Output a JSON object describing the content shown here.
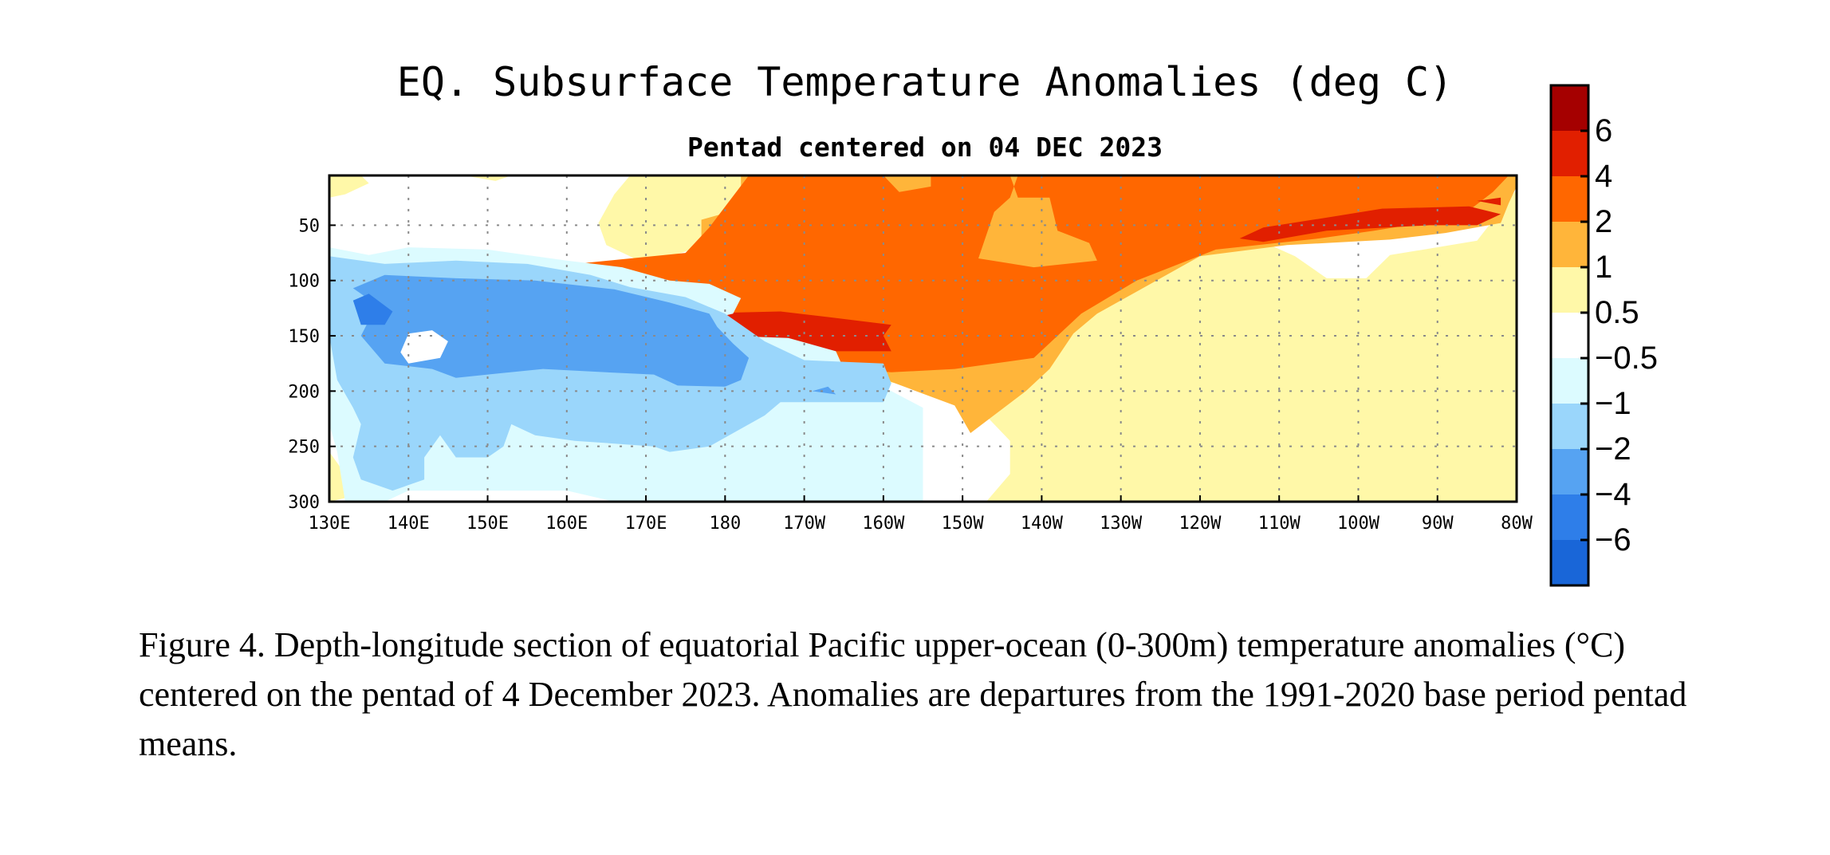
{
  "chart_data": {
    "type": "heatmap",
    "title": "EQ. Subsurface Temperature Anomalies (deg C)",
    "subtitle": "Pentad centered on 04 DEC 2023",
    "xlabel": "",
    "ylabel": "",
    "x_ticks": [
      "130E",
      "140E",
      "150E",
      "160E",
      "170E",
      "180",
      "170W",
      "160W",
      "150W",
      "140W",
      "130W",
      "120W",
      "110W",
      "100W",
      "90W",
      "80W"
    ],
    "y_ticks": [
      "50",
      "100",
      "150",
      "200",
      "250",
      "300"
    ],
    "y_tick_values": [
      50,
      100,
      150,
      200,
      250,
      300
    ],
    "ylim": [
      300,
      5
    ],
    "grid": true,
    "colorbar": {
      "placement": "right",
      "tick_labels": [
        "6",
        "4",
        "2",
        "1",
        "0.5",
        "−0.5",
        "−1",
        "−2",
        "−4",
        "−6"
      ],
      "colors": [
        "#a50000",
        "#e11f00",
        "#ff6700",
        "#ffb53a",
        "#fff8a8",
        "#ffffff",
        "#dcfbff",
        "#9ad6fb",
        "#56a3f2",
        "#2e7ee9",
        "#1966d8"
      ]
    },
    "colors": {
      "level_neg4": "#2e7ee9",
      "level_neg2": "#56a3f2",
      "level_neg1": "#9ad6fb",
      "level_neg05": "#dcfbff",
      "level_zero": "#ffffff",
      "level_05": "#fff8a8",
      "level_1": "#ffb53a",
      "level_2": "#ff6700",
      "level_4": "#e11f00"
    },
    "regions": [
      {
        "level": "level_05",
        "points": [
          [
            130,
            5
          ],
          [
            134,
            5
          ],
          [
            135,
            12
          ],
          [
            132,
            22
          ],
          [
            130,
            25
          ]
        ]
      },
      {
        "level": "level_05",
        "points": [
          [
            130,
            255
          ],
          [
            132,
            275
          ],
          [
            133,
            295
          ],
          [
            130,
            300
          ]
        ]
      },
      {
        "level": "level_05",
        "points": [
          [
            147,
            5
          ],
          [
            153,
            5
          ],
          [
            151,
            10
          ]
        ]
      },
      {
        "level": "level_05",
        "points": [
          [
            168,
            5
          ],
          [
            200,
            5
          ],
          [
            199,
            20
          ],
          [
            170,
            85
          ],
          [
            165,
            68
          ],
          [
            164,
            48
          ],
          [
            166,
            22
          ]
        ]
      },
      {
        "level": "level_05",
        "points": [
          [
            210,
            68
          ],
          [
            228,
            52
          ],
          [
            234,
            35
          ],
          [
            244,
            42
          ],
          [
            247,
            62
          ],
          [
            252,
            78
          ],
          [
            256,
            98
          ],
          [
            261,
            98
          ],
          [
            264,
            77
          ],
          [
            275,
            64
          ],
          [
            280,
            18
          ],
          [
            280,
            300
          ],
          [
            196,
            300
          ],
          [
            213,
            300
          ],
          [
            216,
            275
          ],
          [
            216,
            245
          ],
          [
            212,
            215
          ],
          [
            208,
            200
          ],
          [
            199,
            190
          ],
          [
            196,
            180
          ]
        ]
      },
      {
        "level": "level_1",
        "points": [
          [
            171,
            92
          ],
          [
            175,
            75
          ],
          [
            177,
            62
          ],
          [
            177,
            45
          ],
          [
            182,
            35
          ],
          [
            182,
            5
          ],
          [
            280,
            5
          ],
          [
            280,
            15
          ],
          [
            279,
            30
          ],
          [
            278,
            48
          ],
          [
            271,
            57
          ],
          [
            264,
            63
          ],
          [
            251,
            68
          ],
          [
            240,
            78
          ],
          [
            232,
            110
          ],
          [
            227,
            130
          ],
          [
            224,
            148
          ],
          [
            221,
            180
          ],
          [
            218,
            200
          ],
          [
            211,
            238
          ],
          [
            209,
            213
          ],
          [
            200,
            189
          ],
          [
            194,
            177
          ],
          [
            187,
            166
          ],
          [
            184,
            160
          ]
        ]
      },
      {
        "level": "level_2",
        "points": [
          [
            175,
            75
          ],
          [
            178,
            52
          ],
          [
            183,
            5
          ],
          [
            279,
            5
          ],
          [
            277,
            20
          ],
          [
            273,
            42
          ],
          [
            262,
            55
          ],
          [
            255,
            62
          ],
          [
            242,
            72
          ],
          [
            232,
            100
          ],
          [
            225,
            130
          ],
          [
            219,
            170
          ],
          [
            209,
            180
          ],
          [
            201,
            183
          ],
          [
            196,
            180
          ],
          [
            193,
            178
          ],
          [
            192,
            168
          ],
          [
            186,
            158
          ],
          [
            176,
            148
          ],
          [
            166,
            140
          ],
          [
            152,
            134
          ],
          [
            150,
            120
          ],
          [
            145,
            104
          ],
          [
            140,
            100
          ]
        ]
      },
      {
        "level": "level_1",
        "points": [
          [
            200,
            5
          ],
          [
            206,
            5
          ],
          [
            206,
            15
          ],
          [
            202,
            20
          ]
        ]
      },
      {
        "level": "level_1",
        "points": [
          [
            212,
            5
          ],
          [
            217,
            5
          ],
          [
            216,
            25
          ],
          [
            214,
            38
          ],
          [
            212,
            80
          ],
          [
            219,
            88
          ],
          [
            227,
            82
          ],
          [
            226,
            66
          ],
          [
            222,
            55
          ],
          [
            221,
            25
          ],
          [
            217,
            25
          ],
          [
            216,
            5
          ]
        ]
      },
      {
        "level": "level_4",
        "points": [
          [
            245,
            62
          ],
          [
            248,
            52
          ],
          [
            257,
            42
          ],
          [
            263,
            35
          ],
          [
            274,
            33
          ],
          [
            278,
            40
          ],
          [
            275,
            50
          ],
          [
            269,
            50
          ],
          [
            256,
            55
          ],
          [
            248,
            65
          ]
        ]
      },
      {
        "level": "level_4",
        "points": [
          [
            275,
            28
          ],
          [
            278,
            25
          ],
          [
            278,
            32
          ]
        ]
      },
      {
        "level": "level_4",
        "points": [
          [
            165,
            140
          ],
          [
            175,
            130
          ],
          [
            187,
            128
          ],
          [
            193,
            133
          ],
          [
            201,
            140
          ],
          [
            200,
            150
          ],
          [
            201,
            164
          ],
          [
            190,
            164
          ],
          [
            183,
            158
          ],
          [
            168,
            145
          ]
        ]
      },
      {
        "level": "level_neg05",
        "points": [
          [
            130,
            70
          ],
          [
            135,
            77
          ],
          [
            140,
            70
          ],
          [
            150,
            72
          ],
          [
            160,
            82
          ],
          [
            167,
            88
          ],
          [
            173,
            100
          ],
          [
            178,
            103
          ],
          [
            182,
            116
          ],
          [
            181,
            130
          ],
          [
            175,
            140
          ],
          [
            180,
            150
          ],
          [
            188,
            152
          ],
          [
            194,
            164
          ],
          [
            195,
            180
          ],
          [
            197,
            187
          ],
          [
            201,
            200
          ],
          [
            205,
            215
          ],
          [
            205,
            300
          ],
          [
            166,
            300
          ],
          [
            160,
            290
          ],
          [
            140,
            290
          ],
          [
            137,
            300
          ],
          [
            132,
            300
          ],
          [
            131,
            255
          ],
          [
            130,
            230
          ]
        ]
      },
      {
        "level": "level_neg1",
        "points": [
          [
            130,
            78
          ],
          [
            137,
            85
          ],
          [
            146,
            82
          ],
          [
            155,
            85
          ],
          [
            163,
            95
          ],
          [
            168,
            106
          ],
          [
            175,
            115
          ],
          [
            180,
            130
          ],
          [
            185,
            155
          ],
          [
            190,
            172
          ],
          [
            200,
            175
          ],
          [
            201,
            193
          ],
          [
            200,
            210
          ],
          [
            187,
            210
          ],
          [
            185,
            222
          ],
          [
            178,
            250
          ],
          [
            173,
            255
          ],
          [
            171,
            250
          ],
          [
            161,
            245
          ],
          [
            156,
            240
          ],
          [
            153,
            230
          ],
          [
            152,
            250
          ],
          [
            150,
            260
          ],
          [
            146,
            260
          ],
          [
            144,
            240
          ],
          [
            142,
            260
          ],
          [
            142,
            280
          ],
          [
            138,
            290
          ],
          [
            134,
            280
          ],
          [
            133,
            260
          ],
          [
            134,
            230
          ],
          [
            133,
            215
          ],
          [
            131,
            190
          ],
          [
            130,
            150
          ]
        ]
      },
      {
        "level": "level_neg2",
        "points": [
          [
            133,
            107
          ],
          [
            137,
            95
          ],
          [
            146,
            98
          ],
          [
            156,
            100
          ],
          [
            166,
            108
          ],
          [
            173,
            120
          ],
          [
            178,
            130
          ],
          [
            179,
            142
          ],
          [
            181,
            157
          ],
          [
            183,
            170
          ],
          [
            182,
            190
          ],
          [
            180,
            196
          ],
          [
            174,
            195
          ],
          [
            171,
            185
          ],
          [
            165,
            183
          ],
          [
            157,
            180
          ],
          [
            150,
            185
          ],
          [
            146,
            188
          ],
          [
            143,
            180
          ],
          [
            137,
            175
          ],
          [
            134,
            150
          ],
          [
            136,
            122
          ]
        ]
      },
      {
        "level": "level_neg4",
        "points": [
          [
            133,
            118
          ],
          [
            135,
            112
          ],
          [
            138,
            128
          ],
          [
            137,
            140
          ],
          [
            134,
            140
          ]
        ]
      },
      {
        "level": "level_zero",
        "points": [
          [
            139,
            165
          ],
          [
            140,
            148
          ],
          [
            143,
            145
          ],
          [
            145,
            155
          ],
          [
            144,
            170
          ],
          [
            140,
            175
          ]
        ]
      },
      {
        "level": "level_neg2",
        "points": [
          [
            191,
            200
          ],
          [
            193,
            196
          ],
          [
            194,
            203
          ]
        ]
      }
    ]
  },
  "caption": "Figure 4. Depth-longitude section of equatorial Pacific upper-ocean (0-300m) temperature anomalies (°C) centered on the pentad of 4 December 2023. Anomalies are departures from the 1991-2020 base period pentad means."
}
